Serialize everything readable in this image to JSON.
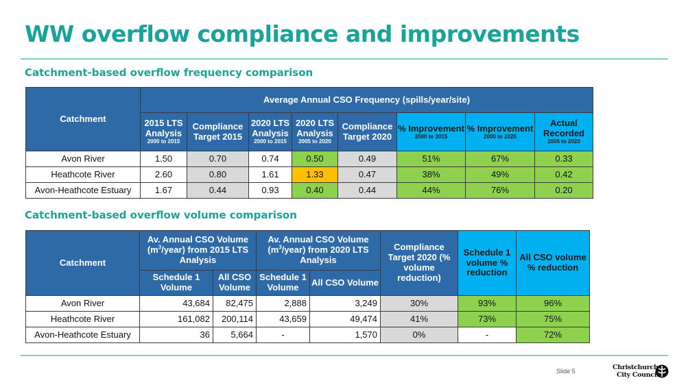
{
  "title": "WW overflow compliance and improvements",
  "section1": {
    "heading": "Catchment-based overflow frequency comparison",
    "catchment_header": "Catchment",
    "group_header": "Average Annual CSO Frequency (spills/year/site)",
    "columns": [
      {
        "main": "2015 LTS Analysis",
        "small": "2000 to 2015"
      },
      {
        "main": "Compliance Target 2015",
        "small": ""
      },
      {
        "main": "2020 LTS Analysis",
        "small": "2000 to 2015"
      },
      {
        "main": "2020 LTS Analysis",
        "small": "2005 to 2020"
      },
      {
        "main": "Compliance Target 2020",
        "small": ""
      },
      {
        "main": "% Improvement",
        "small": "2000 to 2015"
      },
      {
        "main": "% Improvement",
        "small": "2000 to 2020"
      },
      {
        "main": "Actual Recorded",
        "small": "2005 to 2020"
      }
    ],
    "rows": [
      {
        "name": "Avon River",
        "values": [
          "1.50",
          "0.70",
          "0.74",
          "0.50",
          "0.49",
          "51%",
          "67%",
          "0.33"
        ]
      },
      {
        "name": "Heathcote River",
        "values": [
          "2.60",
          "0.80",
          "1.61",
          "1.33",
          "0.47",
          "38%",
          "49%",
          "0.42"
        ]
      },
      {
        "name": "Avon-Heathcote Estuary",
        "values": [
          "1.67",
          "0.44",
          "0.93",
          "0.40",
          "0.44",
          "44%",
          "76%",
          "0.20"
        ]
      }
    ]
  },
  "section2": {
    "heading": "Catchment-based overflow volume comparison",
    "catchment_header": "Catchment",
    "group2015": {
      "pre": "Av. Annual CSO Volume (m",
      "sup": "3",
      "post": "/year) from 2015 LTS Analysis"
    },
    "group2020": {
      "pre": "Av. Annual CSO Volume (m",
      "sup": "3",
      "post": "/year) from 2020 LTS Analysis"
    },
    "sub_headers": [
      "Schedule 1 Volume",
      "All CSO Volume",
      "Schedule 1 Volume",
      "All CSO Volume"
    ],
    "target_header": "Compliance Target 2020 (% volume reduction)",
    "sched_reduction_header": "Schedule 1 volume % reduction",
    "all_reduction_header": "All CSO volume % reduction",
    "rows": [
      {
        "name": "Avon River",
        "values": [
          "43,684",
          "82,475",
          "2,888",
          "3,249",
          "30%",
          "93%",
          "96%"
        ]
      },
      {
        "name": "Heathcote River",
        "values": [
          "161,082",
          "200,114",
          "43,659",
          "49,474",
          "41%",
          "73%",
          "75%"
        ]
      },
      {
        "name": "Avon-Heathcote Estuary",
        "values": [
          "36",
          "5,664",
          "-",
          "1,570",
          "0%",
          "-",
          "72%"
        ]
      }
    ]
  },
  "footer": {
    "slide": "Slide 5",
    "logo_line1": "Christchurch",
    "logo_line2": "City Council"
  }
}
